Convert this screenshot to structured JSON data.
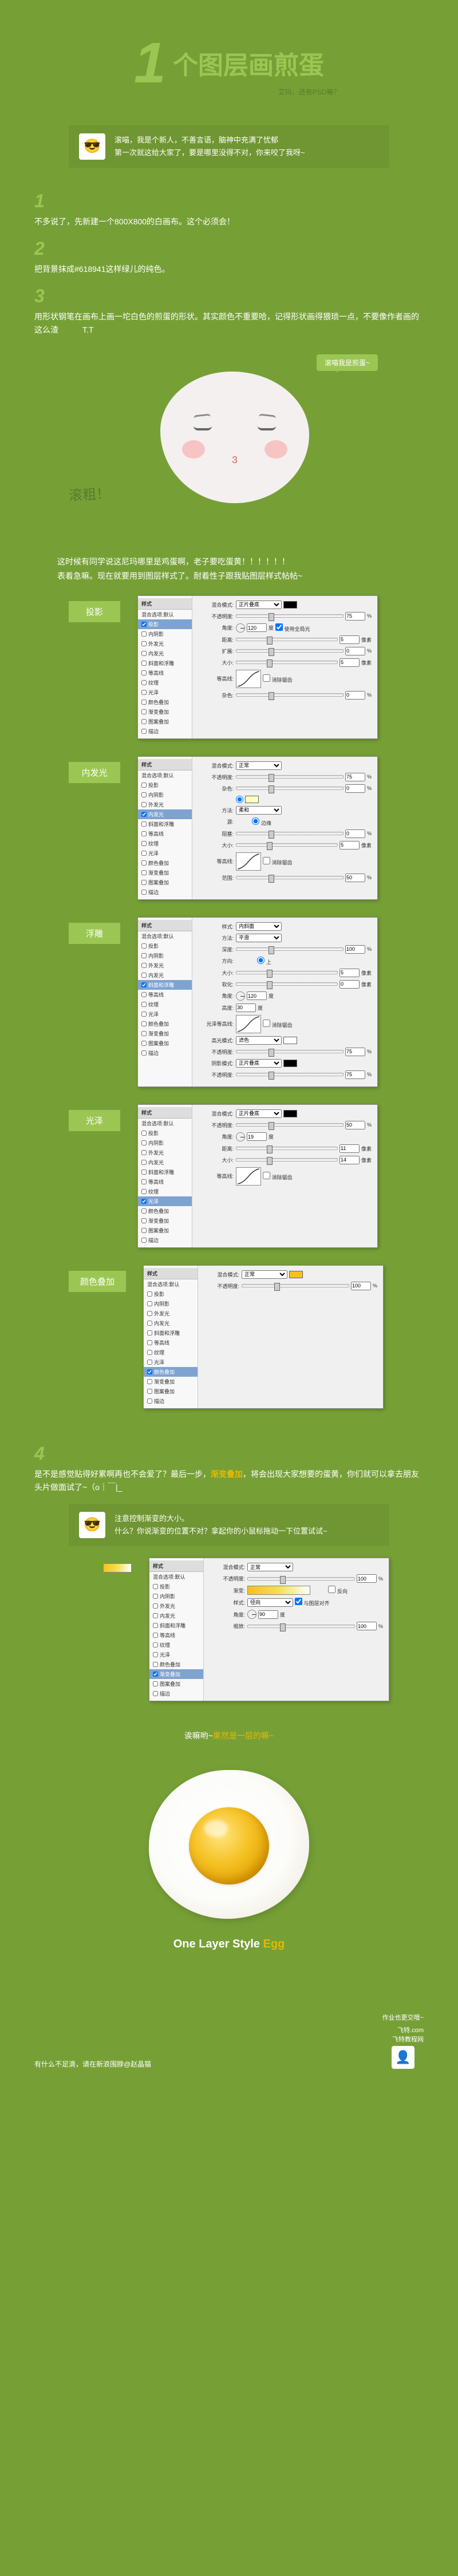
{
  "header": {
    "number": "1",
    "title": "个图层画煎蛋",
    "subtitle": "艾玛，还有PSD嘛？"
  },
  "intro": {
    "avatar_glyph": "😎",
    "text": "滚喵，我是个新人，不善言语，脑神中充满了忧郁\n第一次就这给大家了，要是哪里没得不对，你来咬了我呀~"
  },
  "steps": [
    {
      "num": "1",
      "text": "不多说了，先新建一个800X800的白画布。这个必须会！"
    },
    {
      "num": "2",
      "text": "把背景抹成#618941这样绿儿的纯色。"
    },
    {
      "num": "3",
      "text": "用形状钢笔在画布上画一坨白色的煎蛋的形状。其实颜色不重要哈，记得形状画得猥琐一点，不要像作者画的这么渣　　　T.T"
    }
  ],
  "bubble": "滚喵我是煎蛋~",
  "scrawl": "滚粗！",
  "caption": "这时候有同学说这尼玛哪里是鸡蛋啊，老子要吃蛋黄！！！！！！\n表着急嘛。现在就要用到图层样式了。耐着性子跟我贴图层样式帖帖~",
  "panels": [
    {
      "label": "投影",
      "sel_idx": 1,
      "fields": [
        {
          "label": "混合模式:",
          "type": "select",
          "value": "正片叠底",
          "swatch": "#000000"
        },
        {
          "label": "不透明度:",
          "type": "slider",
          "value": "75",
          "unit": "%"
        },
        {
          "label": "角度:",
          "type": "angle",
          "value": "120",
          "unit": "度",
          "extra": "使用全局光"
        },
        {
          "label": "距离:",
          "type": "slider",
          "value": "5",
          "unit": "像素"
        },
        {
          "label": "扩展:",
          "type": "slider",
          "value": "0",
          "unit": "%"
        },
        {
          "label": "大小:",
          "type": "slider",
          "value": "5",
          "unit": "像素"
        },
        {
          "label": "等高线:",
          "type": "contour"
        },
        {
          "label": "杂色:",
          "type": "slider",
          "value": "0",
          "unit": "%"
        }
      ]
    },
    {
      "label": "内发光",
      "sel_idx": 4,
      "fields": [
        {
          "label": "混合模式:",
          "type": "select",
          "value": "正常"
        },
        {
          "label": "不透明度:",
          "type": "slider",
          "value": "75",
          "unit": "%"
        },
        {
          "label": "杂色:",
          "type": "slider",
          "value": "0",
          "unit": "%"
        },
        {
          "label": "",
          "type": "swatch_only",
          "swatch": "#ffffbe"
        },
        {
          "label": "方法:",
          "type": "select",
          "value": "柔和"
        },
        {
          "label": "源:",
          "type": "radio",
          "value": "边缘"
        },
        {
          "label": "阻塞:",
          "type": "slider",
          "value": "0",
          "unit": "%"
        },
        {
          "label": "大小:",
          "type": "slider",
          "value": "5",
          "unit": "像素"
        },
        {
          "label": "等高线:",
          "type": "contour"
        },
        {
          "label": "范围:",
          "type": "slider",
          "value": "50",
          "unit": "%"
        }
      ]
    },
    {
      "label": "浮雕",
      "sel_idx": 5,
      "fields": [
        {
          "label": "样式:",
          "type": "select",
          "value": "内斜面"
        },
        {
          "label": "方法:",
          "type": "select",
          "value": "平滑"
        },
        {
          "label": "深度:",
          "type": "slider",
          "value": "100",
          "unit": "%"
        },
        {
          "label": "方向:",
          "type": "radio",
          "value": "上"
        },
        {
          "label": "大小:",
          "type": "slider",
          "value": "5",
          "unit": "像素"
        },
        {
          "label": "软化:",
          "type": "slider",
          "value": "0",
          "unit": "像素"
        },
        {
          "label": "角度:",
          "type": "angle",
          "value": "120",
          "unit": "度"
        },
        {
          "label": "高度:",
          "type": "text",
          "value": "30",
          "unit": "度"
        },
        {
          "label": "光泽等高线:",
          "type": "contour"
        },
        {
          "label": "高光模式:",
          "type": "select",
          "value": "滤色",
          "swatch": "#ffffff"
        },
        {
          "label": "不透明度:",
          "type": "slider",
          "value": "75",
          "unit": "%"
        },
        {
          "label": "阴影模式:",
          "type": "select",
          "value": "正片叠底",
          "swatch": "#000000"
        },
        {
          "label": "不透明度:",
          "type": "slider",
          "value": "75",
          "unit": "%"
        }
      ]
    },
    {
      "label": "光泽",
      "sel_idx": 8,
      "fields": [
        {
          "label": "混合模式:",
          "type": "select",
          "value": "正片叠底",
          "swatch": "#000000"
        },
        {
          "label": "不透明度:",
          "type": "slider",
          "value": "50",
          "unit": "%"
        },
        {
          "label": "角度:",
          "type": "angle",
          "value": "19",
          "unit": "度"
        },
        {
          "label": "距离:",
          "type": "slider",
          "value": "11",
          "unit": "像素"
        },
        {
          "label": "大小:",
          "type": "slider",
          "value": "14",
          "unit": "像素"
        },
        {
          "label": "等高线:",
          "type": "contour"
        }
      ]
    },
    {
      "label": "颜色叠加",
      "sel_idx": 9,
      "fields": [
        {
          "label": "混合模式:",
          "type": "select",
          "value": "正常",
          "swatch": "#f5c020"
        },
        {
          "label": "不透明度:",
          "type": "slider",
          "value": "100",
          "unit": "%"
        }
      ]
    }
  ],
  "side_items": [
    "混合选项:默认",
    "投影",
    "内阴影",
    "外发光",
    "内发光",
    "斜面和浮雕",
    "等高线",
    "纹理",
    "光泽",
    "颜色叠加",
    "渐变叠加",
    "图案叠加",
    "描边"
  ],
  "step4": {
    "num": "4",
    "text_a": "是不是感觉贴得好累啊再也不会爱了？最后一步，",
    "hl": "渐变叠加",
    "text_b": "，将会出现大家想要的蛋黄，你们就可以拿去朋友头片做面试了~（o｜￣|_"
  },
  "step4_note": {
    "avatar_glyph": "😎",
    "line1": "注意控制渐变的大小。",
    "line2": "什么？你说渐变的位置不对？拿起你的小鼠标拖动一下位置试试~"
  },
  "panel4": {
    "sel_idx": 10,
    "fields": [
      {
        "label": "混合模式:",
        "type": "select",
        "value": "正常"
      },
      {
        "label": "不透明度:",
        "type": "slider",
        "value": "100",
        "unit": "%"
      },
      {
        "label": "渐变:",
        "type": "gradient"
      },
      {
        "label": "样式:",
        "type": "select",
        "value": "径向",
        "extra": "与图层对齐"
      },
      {
        "label": "角度:",
        "type": "angle",
        "value": "90",
        "unit": "度"
      },
      {
        "label": "缩放:",
        "type": "slider",
        "value": "100",
        "unit": "%"
      }
    ]
  },
  "done_caption": {
    "a": "诶嘛哟~",
    "b": "果然是一层的嘛~"
  },
  "final_title": {
    "a": "One Layer Style ",
    "b": "Egg"
  },
  "footer": {
    "left": "有什么不足滴，请在新浪围脖@赵晶猫",
    "right_top": "作业也更交哦~",
    "brand": "飞特.com",
    "brand2": "飞特教程网",
    "logo_glyph": "👤"
  },
  "colors": {
    "bg": "#76a036",
    "accent": "#9bc653",
    "highlight": "#e6b800",
    "dark_green": "#5a7a2a"
  }
}
